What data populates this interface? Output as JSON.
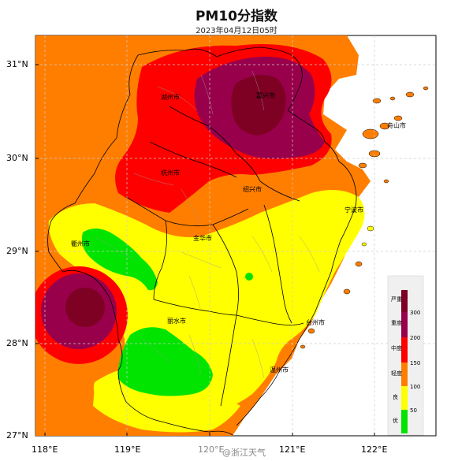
{
  "title": "PM10分指数",
  "subtitle": "2023年04月12日05时",
  "axes": {
    "lat_ticks": [
      "31°N",
      "30°N",
      "29°N",
      "28°N",
      "27°N"
    ],
    "lon_ticks": [
      "118°E",
      "119°E",
      "120°E",
      "121°E",
      "122°E"
    ]
  },
  "cities": {
    "huzhou": "湖州市",
    "jiaxing": "嘉兴市",
    "zhoushan": "舟山市",
    "hangzhou": "杭州市",
    "shaoxing": "绍兴市",
    "ningbo": "宁波市",
    "quzhou": "衢州市",
    "jinhua": "金华市",
    "lishui": "丽水市",
    "taizhou": "台州市",
    "wenzhou": "温州市"
  },
  "legend": {
    "grades": [
      "严重",
      "重度",
      "中度",
      "轻度",
      "良",
      "优"
    ],
    "values": [
      "300",
      "200",
      "150",
      "100",
      "50"
    ],
    "colors": [
      "#7e0023",
      "#99004c",
      "#ff0000",
      "#ff7e00",
      "#ffff00",
      "#00e400"
    ]
  },
  "watermark": "@浙江天气"
}
